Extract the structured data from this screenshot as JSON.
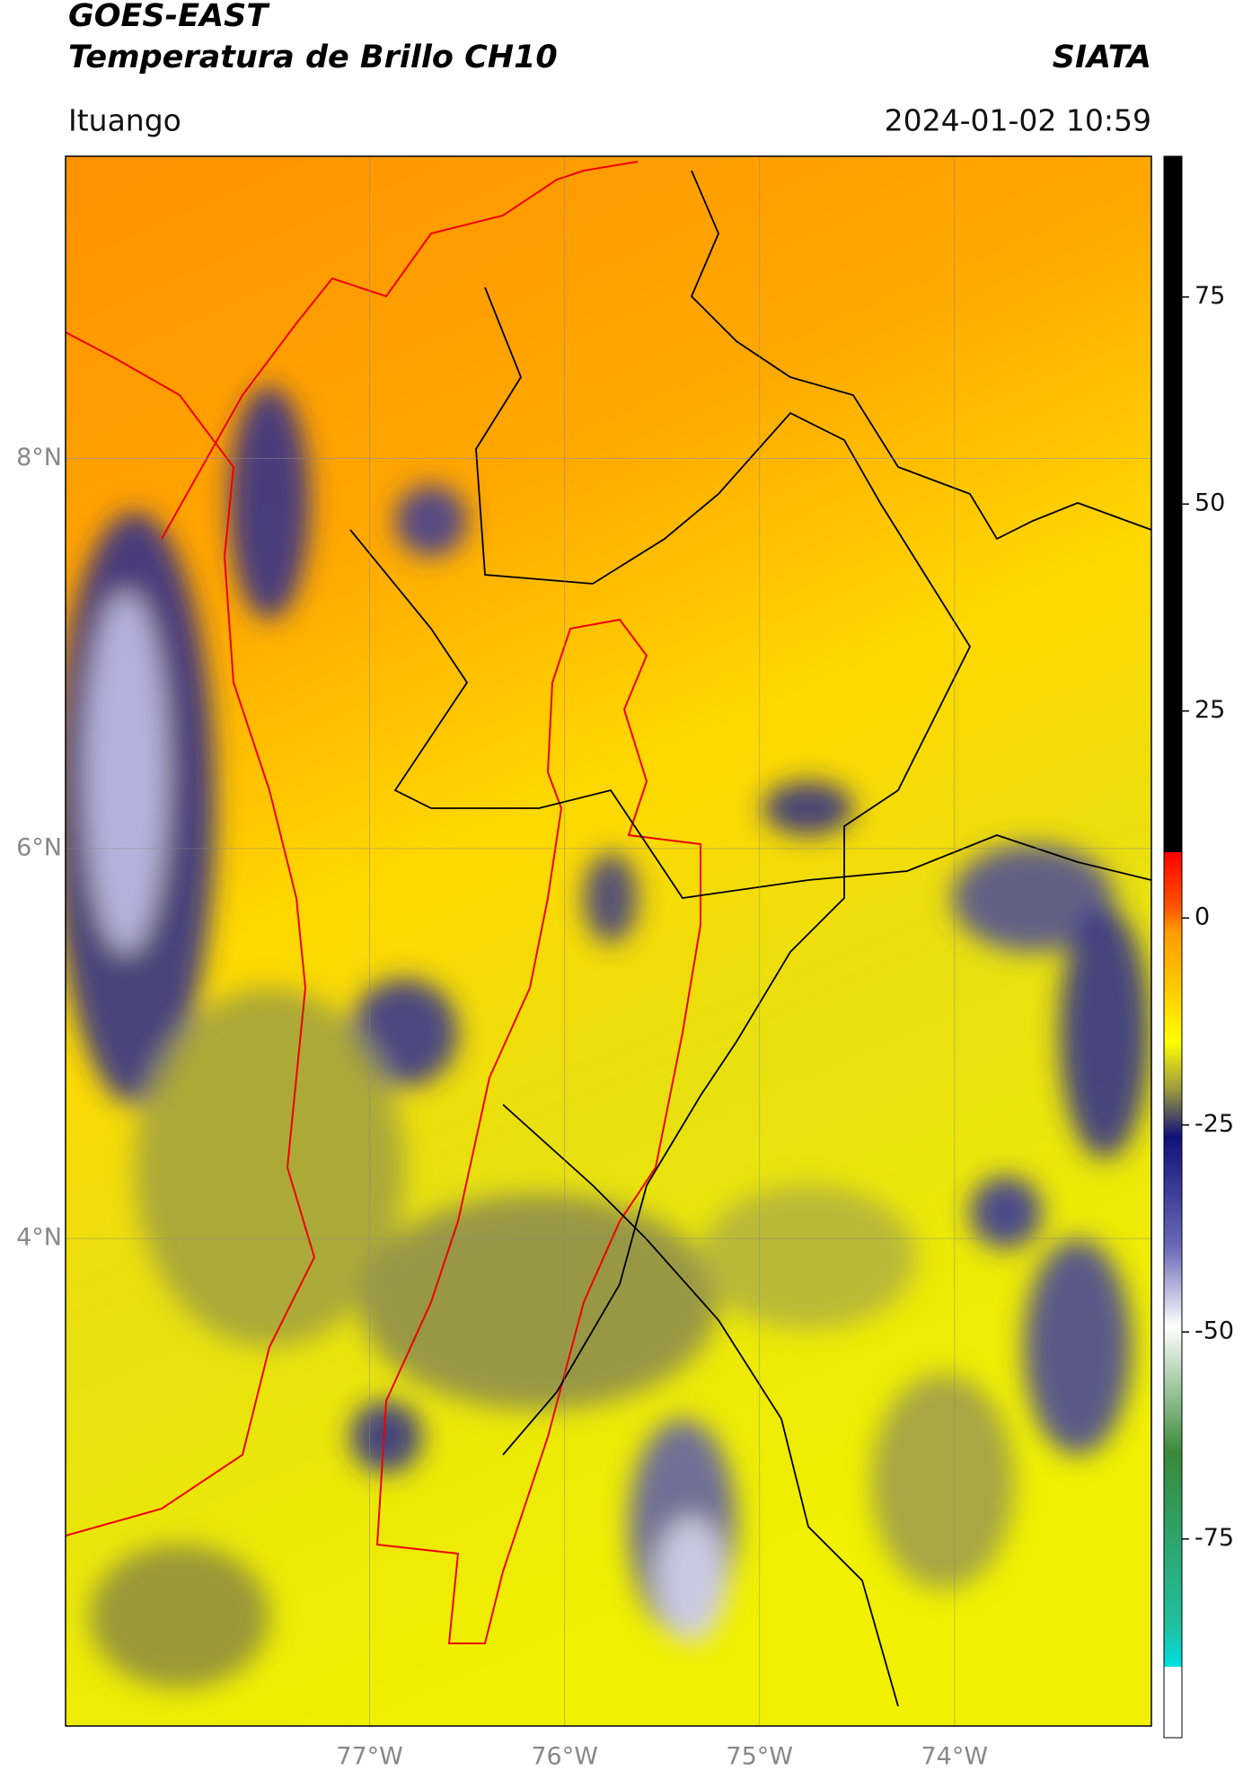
{
  "header": {
    "title": "GOES-EAST",
    "subtitle": "Temperatura de Brillo CH10",
    "brand": "SIATA",
    "location": "Ituango",
    "timestamp": "2024-01-02 10:59"
  },
  "map": {
    "xlim": [
      -78.56,
      -72.99
    ],
    "ylim": [
      1.5,
      9.55
    ],
    "xticks": [
      {
        "value": -77,
        "label": "77°W"
      },
      {
        "value": -76,
        "label": "76°W"
      },
      {
        "value": -75,
        "label": "75°W"
      },
      {
        "value": -74,
        "label": "74°W"
      }
    ],
    "yticks": [
      {
        "value": 4,
        "label": "4°N"
      },
      {
        "value": 6,
        "label": "6°N"
      },
      {
        "value": 8,
        "label": "8°N"
      }
    ]
  },
  "colorbar": {
    "lim": [
      -99,
      92
    ],
    "ticks": [
      -75,
      -50,
      -25,
      0,
      25,
      50,
      75
    ]
  }
}
